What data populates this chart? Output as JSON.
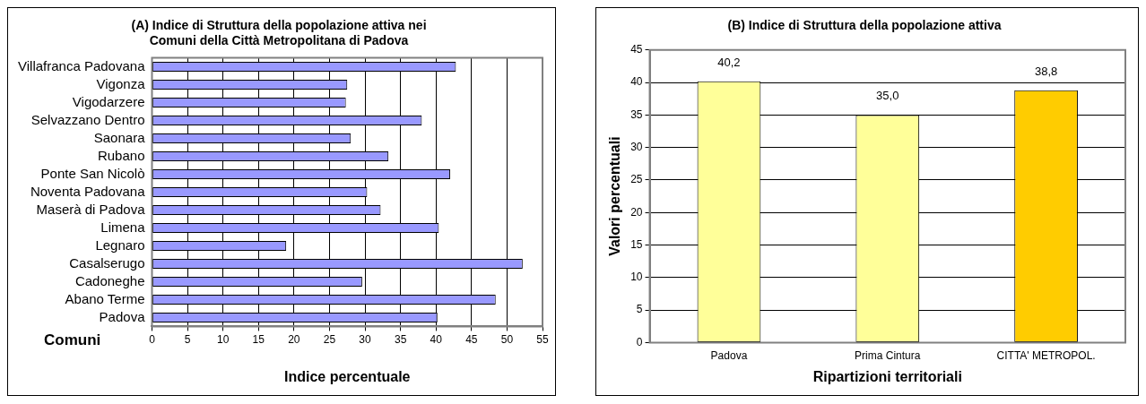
{
  "chart_data": [
    {
      "type": "bar",
      "orientation": "horizontal",
      "title": "(A) Indice di Struttura della popolazione attiva nei\nComuni della Città Metropolitana di Padova",
      "xlabel": "Indice percentuale",
      "ylabel": "Comuni",
      "categories": [
        "Villafranca Padovana",
        "Vigonza",
        "Vigodarzere",
        "Selvazzano Dentro",
        "Saonara",
        "Rubano",
        "Ponte San Nicolò",
        "Noventa Padovana",
        "Maserà di Padova",
        "Limena",
        "Legnaro",
        "Casalserugo",
        "Cadoneghe",
        "Abano Terme",
        "Padova"
      ],
      "values": [
        42.8,
        27.5,
        27.3,
        38.0,
        28.0,
        33.3,
        42.0,
        30.3,
        32.2,
        40.4,
        18.9,
        52.2,
        29.6,
        48.4,
        40.2
      ],
      "color": "#9999ff",
      "xlim": [
        0,
        55
      ],
      "xticks": [
        0,
        5,
        10,
        15,
        20,
        25,
        30,
        35,
        40,
        45,
        50,
        55
      ],
      "grid": "x"
    },
    {
      "type": "bar",
      "title": "(B) Indice di Struttura della popolazione attiva",
      "xlabel": "Ripartizioni territoriali",
      "ylabel": "Valori percentuali",
      "categories": [
        "Padova",
        "Prima Cintura",
        "CITTA' METROPOL."
      ],
      "values": [
        40.2,
        35.0,
        38.8
      ],
      "colors": [
        "#ffff99",
        "#ffff99",
        "#ffcc00"
      ],
      "value_labels": [
        "40,2",
        "35,0",
        "38,8"
      ],
      "ylim": [
        0,
        45
      ],
      "yticks": [
        0,
        5,
        10,
        15,
        20,
        25,
        30,
        35,
        40,
        45
      ],
      "grid": "y"
    }
  ]
}
